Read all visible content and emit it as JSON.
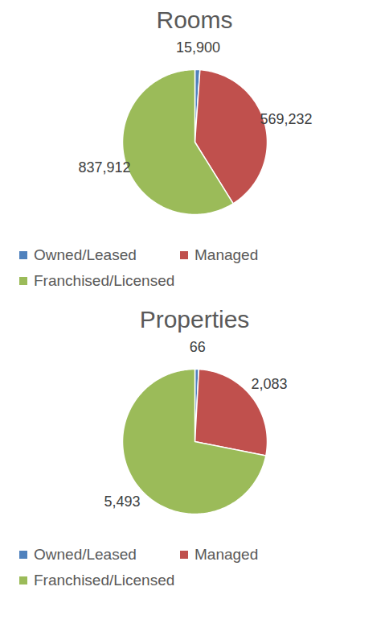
{
  "chart_data": [
    {
      "type": "pie",
      "title": "Rooms",
      "categories": [
        "Owned/Leased",
        "Managed",
        "Franchised/Licensed"
      ],
      "values": [
        15900,
        569232,
        837912
      ],
      "value_labels": [
        "15,900",
        "569,232",
        "837,912"
      ],
      "colors": [
        "#4f81bd",
        "#c0504d",
        "#9bbb59"
      ],
      "data_labels": true,
      "legend": "bottom"
    },
    {
      "type": "pie",
      "title": "Properties",
      "categories": [
        "Owned/Leased",
        "Managed",
        "Franchised/Licensed"
      ],
      "values": [
        66,
        2083,
        5493
      ],
      "value_labels": [
        "66",
        "2,083",
        "5,493"
      ],
      "colors": [
        "#4f81bd",
        "#c0504d",
        "#9bbb59"
      ],
      "data_labels": true,
      "legend": "bottom"
    }
  ]
}
